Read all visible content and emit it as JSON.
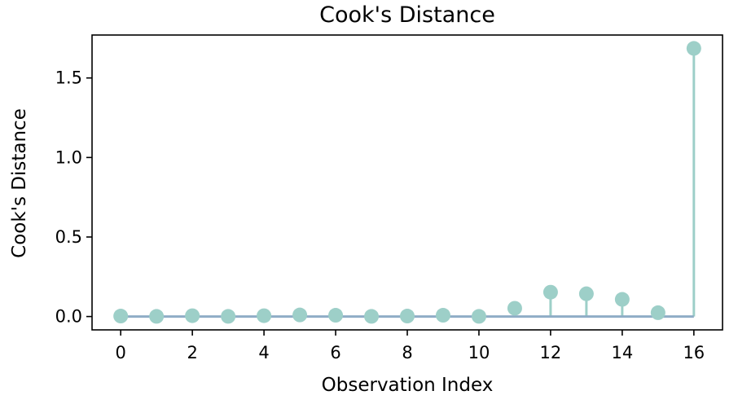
{
  "chart_data": {
    "type": "stem",
    "title": "Cook's Distance",
    "xlabel": "Observation Index",
    "ylabel": "Cook's Distance",
    "x": [
      0,
      1,
      2,
      3,
      4,
      5,
      6,
      7,
      8,
      9,
      10,
      11,
      12,
      13,
      14,
      15,
      16
    ],
    "values": [
      0.003,
      0.001,
      0.005,
      0.001,
      0.005,
      0.01,
      0.008,
      0.001,
      0.003,
      0.008,
      0.001,
      0.052,
      0.153,
      0.143,
      0.108,
      0.024,
      1.686
    ],
    "xticks": [
      0,
      2,
      4,
      6,
      8,
      10,
      12,
      14,
      16
    ],
    "xtick_labels": [
      "0",
      "2",
      "4",
      "6",
      "8",
      "10",
      "12",
      "14",
      "16"
    ],
    "yticks": [
      0.0,
      0.5,
      1.0,
      1.5
    ],
    "ytick_labels": [
      "0.0",
      "0.5",
      "1.0",
      "1.5"
    ],
    "xlim": [
      -0.8,
      16.8
    ],
    "ylim": [
      -0.084,
      1.77
    ],
    "baseline": 0,
    "grid": false,
    "marker_color": "#9dcfc8",
    "baseline_color": "#8fadc6"
  }
}
